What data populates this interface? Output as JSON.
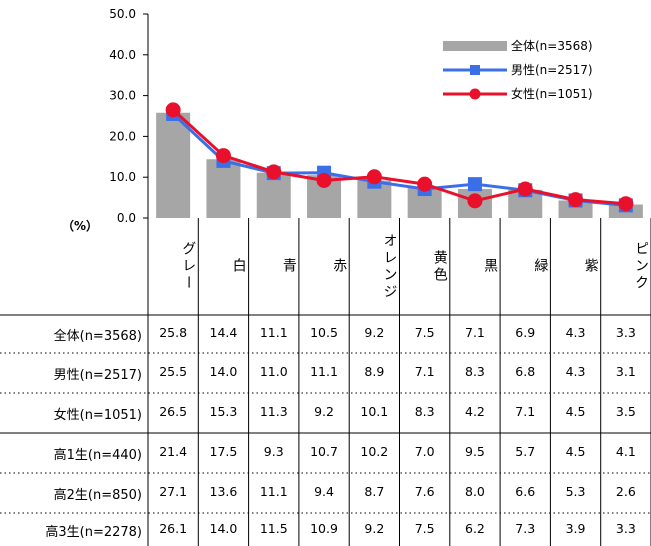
{
  "chart_data": {
    "type": "bar",
    "unit_label": "（%）",
    "ylim": [
      0,
      50
    ],
    "yticks": [
      "50.0",
      "40.0",
      "30.0",
      "20.0",
      "10.0",
      "0.0"
    ],
    "categories": [
      "グレー",
      "白",
      "青",
      "赤",
      "オレンジ",
      "黄色",
      "黒",
      "緑",
      "紫",
      "ピンク"
    ],
    "series": [
      {
        "name": "全体(n=3568)",
        "kind": "bar",
        "color": "#a6a6a6",
        "values": [
          25.8,
          14.4,
          11.1,
          10.5,
          9.2,
          7.5,
          7.1,
          6.9,
          4.3,
          3.3
        ]
      },
      {
        "name": "男性(n=2517)",
        "kind": "line",
        "color": "#3b6fe8",
        "marker": "square",
        "values": [
          25.5,
          14.0,
          11.0,
          11.1,
          8.9,
          7.1,
          8.3,
          6.8,
          4.3,
          3.1
        ]
      },
      {
        "name": "女性(n=1051)",
        "kind": "line",
        "color": "#e8102a",
        "marker": "circle",
        "values": [
          26.5,
          15.3,
          11.3,
          9.2,
          10.1,
          8.3,
          4.2,
          7.1,
          4.5,
          3.5
        ]
      }
    ],
    "legend_position": "top-right",
    "grid": false
  },
  "table": {
    "rows": [
      {
        "label": "全体(n=3568)",
        "values": [
          "25.8",
          "14.4",
          "11.1",
          "10.5",
          "9.2",
          "7.5",
          "7.1",
          "6.9",
          "4.3",
          "3.3"
        ]
      },
      {
        "label": "男性(n=2517)",
        "values": [
          "25.5",
          "14.0",
          "11.0",
          "11.1",
          "8.9",
          "7.1",
          "8.3",
          "6.8",
          "4.3",
          "3.1"
        ]
      },
      {
        "label": "女性(n=1051)",
        "values": [
          "26.5",
          "15.3",
          "11.3",
          "9.2",
          "10.1",
          "8.3",
          "4.2",
          "7.1",
          "4.5",
          "3.5"
        ]
      },
      {
        "label": "高1生(n=440)",
        "values": [
          "21.4",
          "17.5",
          "9.3",
          "10.7",
          "10.2",
          "7.0",
          "9.5",
          "5.7",
          "4.5",
          "4.1"
        ]
      },
      {
        "label": "高2生(n=850)",
        "values": [
          "27.1",
          "13.6",
          "11.1",
          "9.4",
          "8.7",
          "7.6",
          "8.0",
          "6.6",
          "5.3",
          "2.6"
        ]
      },
      {
        "label": "高3生(n=2278)",
        "values": [
          "26.1",
          "14.0",
          "11.5",
          "10.9",
          "9.2",
          "7.5",
          "6.2",
          "7.3",
          "3.9",
          "3.3"
        ]
      }
    ]
  }
}
